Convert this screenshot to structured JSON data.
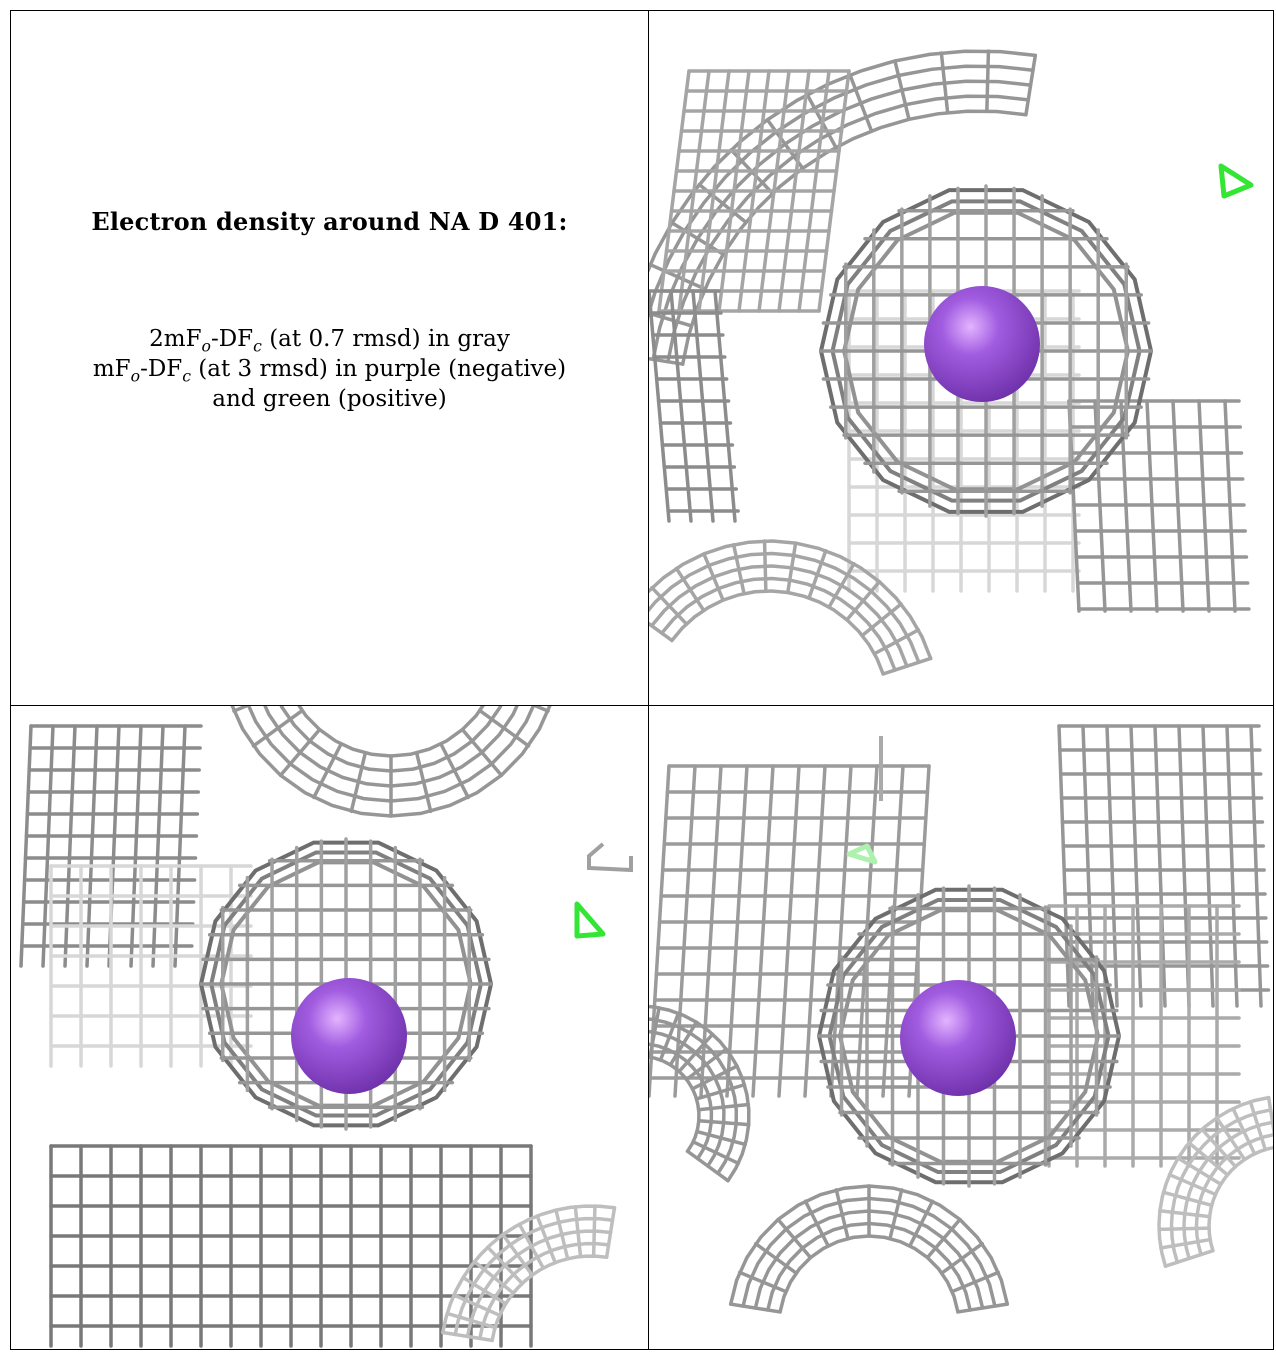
{
  "caption": {
    "title": "Electron density around NA D 401:",
    "line1": {
      "a": "2mF",
      "sub1": "o",
      "b": "-DF",
      "sub2": "c",
      "c": " (at 0.7 rmsd) in gray"
    },
    "line2": {
      "a": "mF",
      "sub1": "o",
      "b": "-DF",
      "sub2": "c",
      "c": " (at 3 rmsd) in purple (negative)"
    },
    "line3": "and green (positive)"
  },
  "views": [
    {
      "name": "view-top-right",
      "atom": "NA D 401",
      "atom_color": "#a15ce0",
      "mesh_color": "#b8b8b8",
      "positive_color": "#33e633"
    },
    {
      "name": "view-bottom-left",
      "atom": "NA D 401",
      "atom_color": "#a15ce0",
      "mesh_color": "#b8b8b8",
      "positive_color": "#33e633"
    },
    {
      "name": "view-bottom-right",
      "atom": "NA D 401",
      "atom_color": "#a15ce0",
      "mesh_color": "#b8b8b8",
      "positive_color": "#33e633"
    }
  ]
}
